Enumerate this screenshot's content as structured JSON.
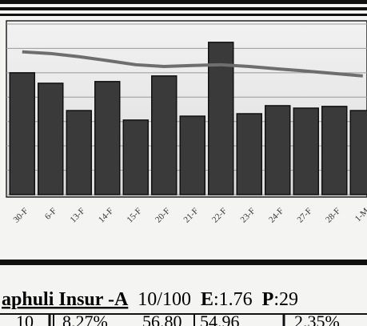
{
  "chart_data": {
    "type": "bar",
    "categories": [
      "30-F",
      "6-F",
      "13-F",
      "14-F",
      "15-F",
      "20-F",
      "21-F",
      "22-F",
      "23-F",
      "24-F",
      "27-F",
      "28-F",
      "1-M"
    ],
    "series": [
      {
        "type": "bar",
        "color": "#3a3a3a",
        "values": [
          5.0,
          4.57,
          3.45,
          4.64,
          3.06,
          4.87,
          3.22,
          6.25,
          3.32,
          3.65,
          3.55,
          3.62,
          3.45
        ]
      },
      {
        "type": "line",
        "color": "#6e6e6e",
        "values": [
          5.86,
          5.79,
          5.66,
          5.5,
          5.33,
          5.26,
          5.3,
          5.33,
          5.26,
          5.16,
          5.07,
          4.97,
          4.87
        ]
      }
    ],
    "ylim": [
      0,
      7
    ],
    "yticks": [
      0,
      1,
      2,
      3,
      4,
      5,
      6,
      7
    ],
    "grid": true
  },
  "ticker": {
    "name": "aphuli Insur -A",
    "face": "10/100",
    "e_label": "E",
    "e_value": ":1.76",
    "p_label": "P",
    "p_value": ":29",
    "row": [
      "10",
      "8.27%",
      "56.80",
      "54.96",
      "2.35%"
    ]
  }
}
